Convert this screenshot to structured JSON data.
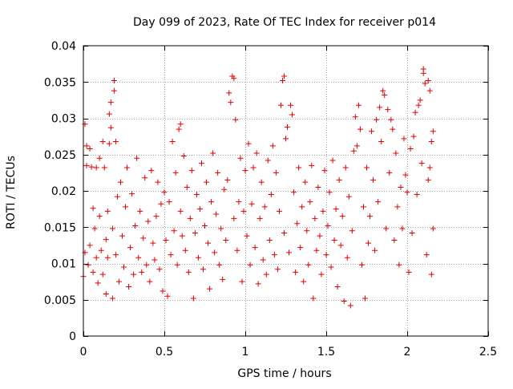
{
  "chart_data": {
    "type": "scatter",
    "title": "Day 099 of 2023, Rate Of TEC Index for receiver p014",
    "xlabel": "GPS time / hours",
    "ylabel": "ROTI / TECUs",
    "xlim": [
      0,
      2.5
    ],
    "ylim": [
      0,
      0.04
    ],
    "xticks": [
      0,
      0.5,
      1,
      1.5,
      2,
      2.5
    ],
    "xtick_labels": [
      "0",
      "0.5",
      "1",
      "1.5",
      "2",
      "2.5"
    ],
    "yticks": [
      0,
      0.005,
      0.01,
      0.015,
      0.02,
      0.025,
      0.03,
      0.035,
      0.04
    ],
    "ytick_labels": [
      "0",
      "0.005",
      "0.01",
      "0.015",
      "0.02",
      "0.025",
      "0.03",
      "0.035",
      "0.04"
    ],
    "grid": true,
    "marker": "+",
    "color": "#e00000",
    "series": [
      {
        "name": "ROTI p014",
        "points": [
          [
            0.0,
            0.0082
          ],
          [
            0.01,
            0.0115
          ],
          [
            0.01,
            0.0292
          ],
          [
            0.02,
            0.0262
          ],
          [
            0.02,
            0.0235
          ],
          [
            0.03,
            0.0098
          ],
          [
            0.04,
            0.0125
          ],
          [
            0.04,
            0.0258
          ],
          [
            0.05,
            0.0233
          ],
          [
            0.06,
            0.0088
          ],
          [
            0.06,
            0.0176
          ],
          [
            0.07,
            0.0148
          ],
          [
            0.08,
            0.0232
          ],
          [
            0.08,
            0.0108
          ],
          [
            0.09,
            0.0073
          ],
          [
            0.1,
            0.0165
          ],
          [
            0.1,
            0.0245
          ],
          [
            0.11,
            0.0118
          ],
          [
            0.12,
            0.0268
          ],
          [
            0.12,
            0.0085
          ],
          [
            0.13,
            0.0232
          ],
          [
            0.14,
            0.0133
          ],
          [
            0.14,
            0.0058
          ],
          [
            0.15,
            0.0172
          ],
          [
            0.15,
            0.0108
          ],
          [
            0.16,
            0.0265
          ],
          [
            0.16,
            0.0306
          ],
          [
            0.17,
            0.0287
          ],
          [
            0.17,
            0.0322
          ],
          [
            0.18,
            0.0148
          ],
          [
            0.18,
            0.0052
          ],
          [
            0.19,
            0.0338
          ],
          [
            0.19,
            0.0352
          ],
          [
            0.2,
            0.0268
          ],
          [
            0.2,
            0.0112
          ],
          [
            0.21,
            0.0192
          ],
          [
            0.22,
            0.0075
          ],
          [
            0.23,
            0.0212
          ],
          [
            0.24,
            0.0138
          ],
          [
            0.25,
            0.0095
          ],
          [
            0.26,
            0.0178
          ],
          [
            0.27,
            0.0232
          ],
          [
            0.28,
            0.0068
          ],
          [
            0.29,
            0.0122
          ],
          [
            0.3,
            0.0196
          ],
          [
            0.31,
            0.0085
          ],
          [
            0.32,
            0.0152
          ],
          [
            0.33,
            0.0245
          ],
          [
            0.34,
            0.0108
          ],
          [
            0.35,
            0.0172
          ],
          [
            0.36,
            0.0088
          ],
          [
            0.37,
            0.0135
          ],
          [
            0.38,
            0.0218
          ],
          [
            0.39,
            0.0098
          ],
          [
            0.4,
            0.0158
          ],
          [
            0.41,
            0.0075
          ],
          [
            0.42,
            0.0228
          ],
          [
            0.43,
            0.0128
          ],
          [
            0.44,
            0.0105
          ],
          [
            0.45,
            0.0165
          ],
          [
            0.46,
            0.0212
          ],
          [
            0.47,
            0.0092
          ],
          [
            0.48,
            0.0182
          ],
          [
            0.49,
            0.0062
          ],
          [
            0.5,
            0.0198
          ],
          [
            0.51,
            0.0132
          ],
          [
            0.52,
            0.0055
          ],
          [
            0.53,
            0.0185
          ],
          [
            0.54,
            0.0112
          ],
          [
            0.55,
            0.0268
          ],
          [
            0.56,
            0.0145
          ],
          [
            0.57,
            0.0225
          ],
          [
            0.58,
            0.0098
          ],
          [
            0.59,
            0.0285
          ],
          [
            0.6,
            0.0292
          ],
          [
            0.6,
            0.0172
          ],
          [
            0.61,
            0.0138
          ],
          [
            0.62,
            0.0248
          ],
          [
            0.63,
            0.0118
          ],
          [
            0.64,
            0.0205
          ],
          [
            0.65,
            0.0088
          ],
          [
            0.66,
            0.0162
          ],
          [
            0.67,
            0.0228
          ],
          [
            0.68,
            0.0052
          ],
          [
            0.69,
            0.0142
          ],
          [
            0.7,
            0.0195
          ],
          [
            0.71,
            0.0108
          ],
          [
            0.72,
            0.0175
          ],
          [
            0.73,
            0.0238
          ],
          [
            0.74,
            0.0092
          ],
          [
            0.75,
            0.0152
          ],
          [
            0.76,
            0.0212
          ],
          [
            0.77,
            0.0128
          ],
          [
            0.78,
            0.0065
          ],
          [
            0.79,
            0.0185
          ],
          [
            0.8,
            0.0252
          ],
          [
            0.81,
            0.0115
          ],
          [
            0.82,
            0.0168
          ],
          [
            0.83,
            0.0225
          ],
          [
            0.84,
            0.0098
          ],
          [
            0.85,
            0.0148
          ],
          [
            0.86,
            0.0078
          ],
          [
            0.87,
            0.0202
          ],
          [
            0.88,
            0.0132
          ],
          [
            0.89,
            0.0215
          ],
          [
            0.9,
            0.0335
          ],
          [
            0.91,
            0.0322
          ],
          [
            0.92,
            0.0358
          ],
          [
            0.93,
            0.0355
          ],
          [
            0.93,
            0.0162
          ],
          [
            0.94,
            0.0298
          ],
          [
            0.95,
            0.0118
          ],
          [
            0.96,
            0.0185
          ],
          [
            0.97,
            0.0245
          ],
          [
            0.98,
            0.0075
          ],
          [
            0.99,
            0.0172
          ],
          [
            1.0,
            0.0228
          ],
          [
            1.01,
            0.0138
          ],
          [
            1.02,
            0.0265
          ],
          [
            1.03,
            0.0098
          ],
          [
            1.04,
            0.0182
          ],
          [
            1.05,
            0.0232
          ],
          [
            1.06,
            0.0122
          ],
          [
            1.07,
            0.0252
          ],
          [
            1.08,
            0.0072
          ],
          [
            1.09,
            0.0162
          ],
          [
            1.1,
            0.0212
          ],
          [
            1.11,
            0.0105
          ],
          [
            1.12,
            0.0178
          ],
          [
            1.13,
            0.0085
          ],
          [
            1.14,
            0.0242
          ],
          [
            1.15,
            0.0132
          ],
          [
            1.16,
            0.0195
          ],
          [
            1.17,
            0.0262
          ],
          [
            1.18,
            0.0112
          ],
          [
            1.19,
            0.0225
          ],
          [
            1.2,
            0.0092
          ],
          [
            1.21,
            0.0172
          ],
          [
            1.22,
            0.0318
          ],
          [
            1.23,
            0.0352
          ],
          [
            1.24,
            0.0358
          ],
          [
            1.24,
            0.0142
          ],
          [
            1.25,
            0.0272
          ],
          [
            1.26,
            0.0288
          ],
          [
            1.27,
            0.0115
          ],
          [
            1.28,
            0.0318
          ],
          [
            1.29,
            0.0305
          ],
          [
            1.3,
            0.0198
          ],
          [
            1.31,
            0.0088
          ],
          [
            1.32,
            0.0155
          ],
          [
            1.33,
            0.0232
          ],
          [
            1.34,
            0.0122
          ],
          [
            1.35,
            0.0178
          ],
          [
            1.36,
            0.0075
          ],
          [
            1.37,
            0.0212
          ],
          [
            1.38,
            0.0145
          ],
          [
            1.39,
            0.0098
          ],
          [
            1.4,
            0.0185
          ],
          [
            1.41,
            0.0235
          ],
          [
            1.42,
            0.0052
          ],
          [
            1.43,
            0.0162
          ],
          [
            1.44,
            0.0118
          ],
          [
            1.45,
            0.0205
          ],
          [
            1.46,
            0.0138
          ],
          [
            1.47,
            0.0085
          ],
          [
            1.48,
            0.0172
          ],
          [
            1.49,
            0.0228
          ],
          [
            1.5,
            0.0112
          ],
          [
            1.51,
            0.0152
          ],
          [
            1.52,
            0.0198
          ],
          [
            1.53,
            0.0095
          ],
          [
            1.54,
            0.0242
          ],
          [
            1.55,
            0.0132
          ],
          [
            1.56,
            0.0175
          ],
          [
            1.57,
            0.0068
          ],
          [
            1.58,
            0.0215
          ],
          [
            1.59,
            0.0125
          ],
          [
            1.6,
            0.0165
          ],
          [
            1.61,
            0.0048
          ],
          [
            1.62,
            0.0232
          ],
          [
            1.63,
            0.0108
          ],
          [
            1.64,
            0.0192
          ],
          [
            1.65,
            0.0042
          ],
          [
            1.66,
            0.0145
          ],
          [
            1.67,
            0.0255
          ],
          [
            1.68,
            0.0302
          ],
          [
            1.69,
            0.0262
          ],
          [
            1.7,
            0.0318
          ],
          [
            1.71,
            0.0285
          ],
          [
            1.72,
            0.0098
          ],
          [
            1.73,
            0.0178
          ],
          [
            1.74,
            0.0052
          ],
          [
            1.75,
            0.0232
          ],
          [
            1.76,
            0.0128
          ],
          [
            1.77,
            0.0165
          ],
          [
            1.78,
            0.0282
          ],
          [
            1.79,
            0.0215
          ],
          [
            1.8,
            0.0118
          ],
          [
            1.81,
            0.0298
          ],
          [
            1.82,
            0.0185
          ],
          [
            1.83,
            0.0315
          ],
          [
            1.84,
            0.0268
          ],
          [
            1.85,
            0.0338
          ],
          [
            1.86,
            0.0332
          ],
          [
            1.87,
            0.0148
          ],
          [
            1.88,
            0.0312
          ],
          [
            1.89,
            0.0225
          ],
          [
            1.9,
            0.0298
          ],
          [
            1.91,
            0.0285
          ],
          [
            1.92,
            0.0132
          ],
          [
            1.93,
            0.0252
          ],
          [
            1.94,
            0.0178
          ],
          [
            1.95,
            0.0098
          ],
          [
            1.96,
            0.0205
          ],
          [
            1.97,
            0.0148
          ],
          [
            1.98,
            0.0272
          ],
          [
            1.99,
            0.0222
          ],
          [
            2.0,
            0.0198
          ],
          [
            2.01,
            0.0088
          ],
          [
            2.02,
            0.0258
          ],
          [
            2.03,
            0.0142
          ],
          [
            2.04,
            0.0275
          ],
          [
            2.05,
            0.0308
          ],
          [
            2.06,
            0.0195
          ],
          [
            2.07,
            0.0318
          ],
          [
            2.08,
            0.0325
          ],
          [
            2.09,
            0.0238
          ],
          [
            2.1,
            0.0368
          ],
          [
            2.1,
            0.0362
          ],
          [
            2.11,
            0.0348
          ],
          [
            2.12,
            0.0112
          ],
          [
            2.13,
            0.0215
          ],
          [
            2.13,
            0.0352
          ],
          [
            2.14,
            0.0338
          ],
          [
            2.14,
            0.0232
          ],
          [
            2.15,
            0.0268
          ],
          [
            2.15,
            0.0085
          ],
          [
            2.16,
            0.0282
          ],
          [
            2.16,
            0.0148
          ]
        ]
      }
    ]
  }
}
